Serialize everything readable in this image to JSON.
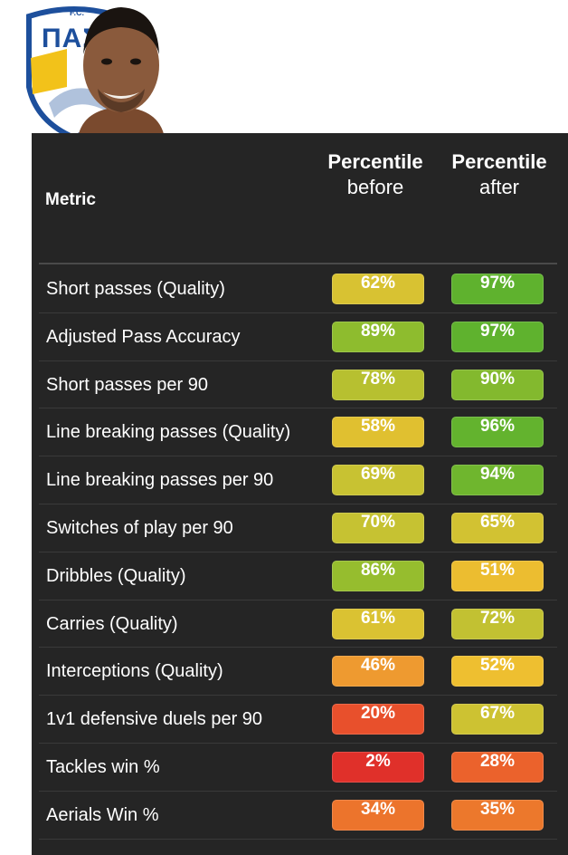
{
  "branding": {
    "crest_text": "ΠΑΣ",
    "crest_small_text": "F.C."
  },
  "table": {
    "header": {
      "metric": "Metric",
      "before_title": "Percentile",
      "before_sub": "before",
      "after_title": "Percentile",
      "after_sub": "after"
    },
    "rows": [
      {
        "label": "Short passes (Quality)",
        "before": "62%",
        "after": "97%",
        "before_color": "#d8c232",
        "after_color": "#5fb22e"
      },
      {
        "label": "Adjusted Pass Accuracy",
        "before": "89%",
        "after": "97%",
        "before_color": "#8ebc2e",
        "after_color": "#5fb22e"
      },
      {
        "label": "Short passes per 90",
        "before": "78%",
        "after": "90%",
        "before_color": "#b7c030",
        "after_color": "#83b92e"
      },
      {
        "label": "Line breaking passes (Quality)",
        "before": "58%",
        "after": "96%",
        "before_color": "#e0c030",
        "after_color": "#63b32e"
      },
      {
        "label": "Line breaking passes per 90",
        "before": "69%",
        "after": "94%",
        "before_color": "#c8c232",
        "after_color": "#6fb62e"
      },
      {
        "label": "Switches of play per 90",
        "before": "70%",
        "after": "65%",
        "before_color": "#c6c232",
        "after_color": "#d2c232"
      },
      {
        "label": "Dribbles (Quality)",
        "before": "86%",
        "after": "51%",
        "before_color": "#96bd2e",
        "after_color": "#ecbd30"
      },
      {
        "label": "Carries (Quality)",
        "before": "61%",
        "after": "72%",
        "before_color": "#dac232",
        "after_color": "#c2c132"
      },
      {
        "label": "Interceptions (Quality)",
        "before": "46%",
        "after": "52%",
        "before_color": "#ee9a30",
        "after_color": "#eebf30"
      },
      {
        "label": "1v1 defensive duels per 90",
        "before": "20%",
        "after": "67%",
        "before_color": "#e8502c",
        "after_color": "#cdc232"
      },
      {
        "label": "Tackles win %",
        "before": "2%",
        "after": "28%",
        "before_color": "#e0302a",
        "after_color": "#eb622c"
      },
      {
        "label": "Aerials Win %",
        "before": "34%",
        "after": "35%",
        "before_color": "#ec742c",
        "after_color": "#ec782c"
      }
    ]
  }
}
